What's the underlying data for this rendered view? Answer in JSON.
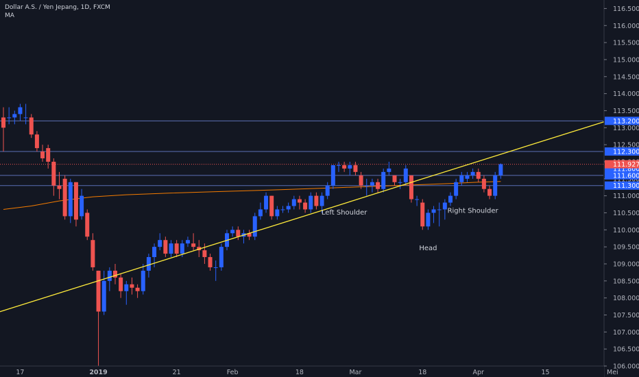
{
  "legend": {
    "title": "Dollar A.S. / Yen Jepang, 1D, FXCM",
    "indicator": "MA"
  },
  "colors": {
    "background": "#131722",
    "up_candle": "#2962ff",
    "down_candle": "#ef5350",
    "trendline": "#ffeb3b",
    "moving_average": "#f57c00",
    "hline": "#5b6fb5",
    "last_price": "#ef5350"
  },
  "chart_data": {
    "type": "candlestick",
    "title": "Dollar A.S. / Yen Jepang, 1D, FXCM",
    "ylim": [
      106.0,
      116.75
    ],
    "y_ticks": [
      106.0,
      106.5,
      107.0,
      107.5,
      108.0,
      108.5,
      109.0,
      109.5,
      110.0,
      110.5,
      111.0,
      111.5,
      112.0,
      112.5,
      113.0,
      113.5,
      114.0,
      114.5,
      115.0,
      115.5,
      116.0,
      116.5
    ],
    "x_labels": [
      "17",
      "2019",
      "21",
      "Feb",
      "18",
      "Mar",
      "18",
      "Apr",
      "15",
      "Mei"
    ],
    "candles": [
      [
        113.3,
        113.6,
        112.3,
        113.0
      ],
      [
        113.3,
        113.6,
        113.1,
        113.3
      ],
      [
        113.3,
        113.5,
        113.1,
        113.4
      ],
      [
        113.4,
        113.7,
        113.2,
        113.6
      ],
      [
        113.3,
        113.7,
        113.1,
        113.3
      ],
      [
        113.3,
        113.4,
        112.7,
        112.8
      ],
      [
        112.8,
        112.9,
        112.3,
        112.4
      ],
      [
        112.3,
        112.5,
        112.0,
        112.1
      ],
      [
        112.4,
        112.5,
        111.8,
        112.0
      ],
      [
        112.0,
        112.1,
        111.0,
        111.3
      ],
      [
        111.3,
        111.7,
        110.9,
        111.2
      ],
      [
        111.5,
        111.6,
        110.3,
        110.4
      ],
      [
        110.4,
        111.5,
        110.2,
        111.4
      ],
      [
        111.4,
        111.4,
        110.1,
        110.3
      ],
      [
        110.4,
        111.2,
        110.3,
        111.0
      ],
      [
        110.5,
        110.6,
        109.7,
        109.8
      ],
      [
        109.7,
        109.9,
        108.8,
        108.9
      ],
      [
        108.8,
        108.8,
        106.0,
        107.6
      ],
      [
        107.6,
        108.8,
        107.5,
        108.5
      ],
      [
        108.5,
        108.9,
        108.2,
        108.8
      ],
      [
        108.8,
        109.0,
        108.4,
        108.6
      ],
      [
        108.6,
        108.7,
        108.0,
        108.2
      ],
      [
        108.2,
        108.5,
        107.8,
        108.4
      ],
      [
        108.4,
        108.6,
        108.1,
        108.3
      ],
      [
        108.3,
        108.4,
        108.0,
        108.2
      ],
      [
        108.2,
        109.0,
        108.1,
        108.8
      ],
      [
        108.8,
        109.3,
        108.6,
        109.2
      ],
      [
        109.2,
        109.6,
        108.9,
        109.5
      ],
      [
        109.5,
        109.9,
        109.4,
        109.7
      ],
      [
        109.7,
        109.8,
        109.2,
        109.3
      ],
      [
        109.3,
        109.7,
        109.2,
        109.6
      ],
      [
        109.6,
        109.7,
        109.2,
        109.3
      ],
      [
        109.3,
        109.7,
        109.2,
        109.6
      ],
      [
        109.6,
        109.8,
        109.5,
        109.7
      ],
      [
        109.6,
        109.9,
        109.4,
        109.5
      ],
      [
        109.5,
        109.7,
        109.2,
        109.4
      ],
      [
        109.4,
        109.6,
        109.0,
        109.2
      ],
      [
        109.2,
        109.3,
        108.8,
        108.9
      ],
      [
        108.9,
        109.1,
        108.5,
        108.9
      ],
      [
        108.9,
        109.6,
        108.8,
        109.5
      ],
      [
        109.5,
        110.0,
        109.4,
        109.9
      ],
      [
        109.9,
        110.1,
        109.8,
        110.0
      ],
      [
        110.0,
        110.1,
        109.7,
        109.8
      ],
      [
        109.8,
        110.0,
        109.6,
        109.9
      ],
      [
        109.9,
        110.0,
        109.7,
        109.8
      ],
      [
        109.8,
        110.5,
        109.7,
        110.4
      ],
      [
        110.4,
        110.8,
        110.3,
        110.6
      ],
      [
        110.6,
        111.1,
        110.5,
        111.0
      ],
      [
        111.0,
        111.0,
        110.3,
        110.4
      ],
      [
        110.4,
        110.7,
        110.3,
        110.6
      ],
      [
        110.6,
        110.7,
        110.5,
        110.6
      ],
      [
        110.6,
        110.8,
        110.5,
        110.7
      ],
      [
        110.7,
        111.0,
        110.6,
        110.9
      ],
      [
        110.9,
        111.0,
        110.6,
        110.8
      ],
      [
        110.8,
        110.9,
        110.5,
        110.6
      ],
      [
        110.6,
        111.1,
        110.5,
        111.0
      ],
      [
        111.0,
        111.1,
        110.6,
        110.7
      ],
      [
        110.7,
        111.1,
        110.5,
        111.0
      ],
      [
        111.0,
        111.4,
        110.9,
        111.3
      ],
      [
        111.3,
        111.9,
        111.2,
        111.9
      ],
      [
        111.9,
        112.0,
        111.7,
        111.9
      ],
      [
        111.9,
        112.0,
        111.7,
        111.8
      ],
      [
        111.8,
        112.0,
        111.6,
        111.9
      ],
      [
        111.9,
        112.0,
        111.6,
        111.7
      ],
      [
        111.6,
        111.7,
        111.2,
        111.3
      ],
      [
        111.3,
        111.5,
        111.0,
        111.3
      ],
      [
        111.3,
        111.5,
        111.1,
        111.4
      ],
      [
        111.4,
        111.5,
        111.1,
        111.2
      ],
      [
        111.2,
        111.8,
        111.1,
        111.7
      ],
      [
        111.7,
        112.0,
        111.6,
        111.8
      ],
      [
        111.6,
        111.6,
        111.3,
        111.4
      ],
      [
        111.4,
        111.5,
        111.2,
        111.4
      ],
      [
        111.4,
        111.9,
        111.3,
        111.8
      ],
      [
        111.6,
        111.6,
        110.8,
        110.9
      ],
      [
        110.9,
        111.0,
        110.7,
        110.9
      ],
      [
        110.8,
        110.9,
        110.0,
        110.1
      ],
      [
        110.1,
        110.6,
        110.0,
        110.5
      ],
      [
        110.5,
        110.7,
        110.2,
        110.6
      ],
      [
        110.6,
        110.8,
        110.1,
        110.6
      ],
      [
        110.6,
        110.9,
        110.3,
        110.8
      ],
      [
        110.8,
        111.1,
        110.7,
        111.0
      ],
      [
        111.0,
        111.5,
        110.9,
        111.4
      ],
      [
        111.4,
        111.7,
        111.3,
        111.6
      ],
      [
        111.5,
        111.7,
        111.4,
        111.6
      ],
      [
        111.6,
        111.8,
        111.5,
        111.7
      ],
      [
        111.7,
        111.8,
        111.4,
        111.5
      ],
      [
        111.5,
        111.6,
        111.1,
        111.2
      ],
      [
        111.2,
        111.3,
        110.9,
        111.0
      ],
      [
        111.0,
        111.7,
        110.9,
        111.6
      ],
      [
        111.6,
        111.95,
        111.5,
        111.927
      ]
    ],
    "moving_average": [
      [
        0,
        110.6
      ],
      [
        5,
        110.7
      ],
      [
        10,
        110.85
      ],
      [
        16,
        110.97
      ],
      [
        22,
        111.03
      ],
      [
        30,
        111.08
      ],
      [
        40,
        111.13
      ],
      [
        50,
        111.18
      ],
      [
        60,
        111.24
      ],
      [
        70,
        111.3
      ],
      [
        75,
        111.33
      ],
      [
        80,
        111.36
      ],
      [
        85,
        111.4
      ],
      [
        89,
        111.42
      ]
    ],
    "trendline": {
      "from": [
        -17,
        106.75
      ],
      "to": [
        108,
        113.2
      ]
    },
    "horizontal_levels": [
      {
        "value": 113.2,
        "label": "113.200"
      },
      {
        "value": 112.3,
        "label": "112.300"
      },
      {
        "value": 111.6,
        "label": "111.600"
      },
      {
        "value": 111.3,
        "label": "111.300"
      }
    ],
    "extra_price_tag": "111.800",
    "last_price": {
      "value": 111.927,
      "label": "111.927"
    },
    "annotations": [
      {
        "text": "Left Shoulder",
        "index": 61,
        "value": 110.45
      },
      {
        "text": "Head",
        "index": 76,
        "value": 109.4
      },
      {
        "text": "Right Shoulder",
        "index": 84,
        "value": 110.5
      }
    ],
    "x_label_positions": [
      {
        "text": "17",
        "index": 3
      },
      {
        "text": "2019",
        "index": 17
      },
      {
        "text": "21",
        "index": 31
      },
      {
        "text": "Feb",
        "index": 41
      },
      {
        "text": "18",
        "index": 53
      },
      {
        "text": "Mar",
        "index": 63
      },
      {
        "text": "18",
        "index": 75
      },
      {
        "text": "Apr",
        "index": 85
      },
      {
        "text": "15",
        "index": 97
      },
      {
        "text": "Mei",
        "index": 109
      }
    ]
  }
}
